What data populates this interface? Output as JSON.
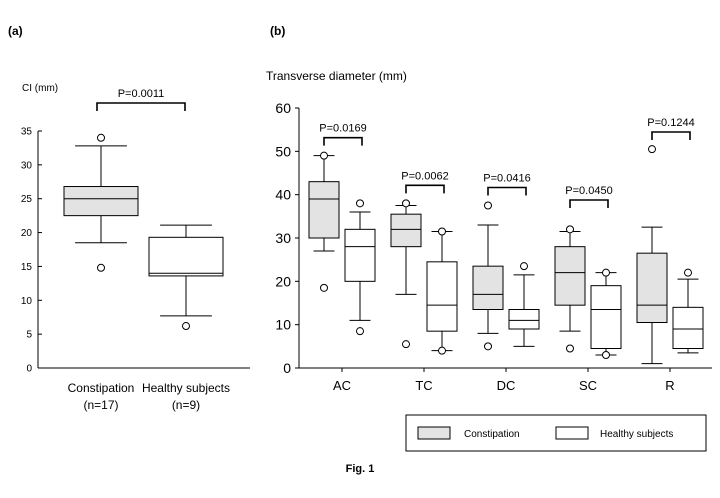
{
  "figure": {
    "caption": "Fig. 1"
  },
  "colors": {
    "constipation": "#e3e3e3",
    "healthy": "#ffffff",
    "stroke": "#000000"
  },
  "chart_data": [
    {
      "panel": "(a)",
      "type": "box",
      "ylabel": "CI (mm)",
      "ylim": [
        0,
        35
      ],
      "yticks": [
        0,
        5,
        10,
        15,
        20,
        25,
        30,
        35
      ],
      "grid": false,
      "categories": [
        {
          "label": "Constipation",
          "n": "(n=17)",
          "group": "constipation",
          "min": 18.5,
          "q1": 22.5,
          "median": 25.0,
          "q3": 26.8,
          "max": 32.8,
          "outliers": [
            14.8,
            34.0
          ]
        },
        {
          "label": "Healthy subjects",
          "n": "(n=9)",
          "group": "healthy",
          "min": 7.7,
          "q1": 13.6,
          "median": 14.0,
          "q3": 19.3,
          "max": 21.1,
          "outliers": [
            6.2
          ]
        }
      ],
      "comparisons": [
        {
          "a": 0,
          "b": 1,
          "label": "P=0.0011"
        }
      ]
    },
    {
      "panel": "(b)",
      "type": "box",
      "ylabel": "Transverse diameter (mm)",
      "ylim": [
        0,
        60
      ],
      "yticks": [
        0,
        10,
        20,
        30,
        40,
        50,
        60
      ],
      "grid": false,
      "legend_position": "bottom-right",
      "series": [
        {
          "name": "Constipation"
        },
        {
          "name": "Healthy subjects"
        }
      ],
      "categories": [
        {
          "label": "AC",
          "constipation": {
            "min": 27,
            "q1": 30,
            "median": 39,
            "q3": 43,
            "max": 49,
            "outliers": [
              18.5,
              49
            ]
          },
          "healthy": {
            "min": 11,
            "q1": 20,
            "median": 28,
            "q3": 32,
            "max": 36,
            "outliers": [
              8.5,
              38
            ]
          },
          "p": "P=0.0169"
        },
        {
          "label": "TC",
          "constipation": {
            "min": 17,
            "q1": 28,
            "median": 32,
            "q3": 35.5,
            "max": 37.5,
            "outliers": [
              5.5,
              38
            ]
          },
          "healthy": {
            "min": 4,
            "q1": 8.5,
            "median": 14.5,
            "q3": 24.5,
            "max": 31.5,
            "outliers": [
              4,
              31.5
            ]
          },
          "p": "P=0.0062"
        },
        {
          "label": "DC",
          "constipation": {
            "min": 8,
            "q1": 13.5,
            "median": 17,
            "q3": 23.5,
            "max": 33,
            "outliers": [
              5,
              37.5
            ]
          },
          "healthy": {
            "min": 5,
            "q1": 9,
            "median": 11,
            "q3": 13.5,
            "max": 21.5,
            "outliers": [
              23.5
            ]
          },
          "p": "P=0.0416"
        },
        {
          "label": "SC",
          "constipation": {
            "min": 8.5,
            "q1": 14.5,
            "median": 22,
            "q3": 28,
            "max": 31.5,
            "outliers": [
              4.5,
              32
            ]
          },
          "healthy": {
            "min": 3,
            "q1": 4.5,
            "median": 13.5,
            "q3": 19,
            "max": 22,
            "outliers": [
              3,
              22
            ]
          },
          "p": "P=0.0450"
        },
        {
          "label": "R",
          "constipation": {
            "min": 1,
            "q1": 10.5,
            "median": 14.5,
            "q3": 26.5,
            "max": 32.5,
            "outliers": [
              50.5
            ]
          },
          "healthy": {
            "min": 3.5,
            "q1": 4.5,
            "median": 9,
            "q3": 14,
            "max": 20.5,
            "outliers": [
              22
            ]
          },
          "p": "P=0.1244"
        }
      ]
    }
  ]
}
